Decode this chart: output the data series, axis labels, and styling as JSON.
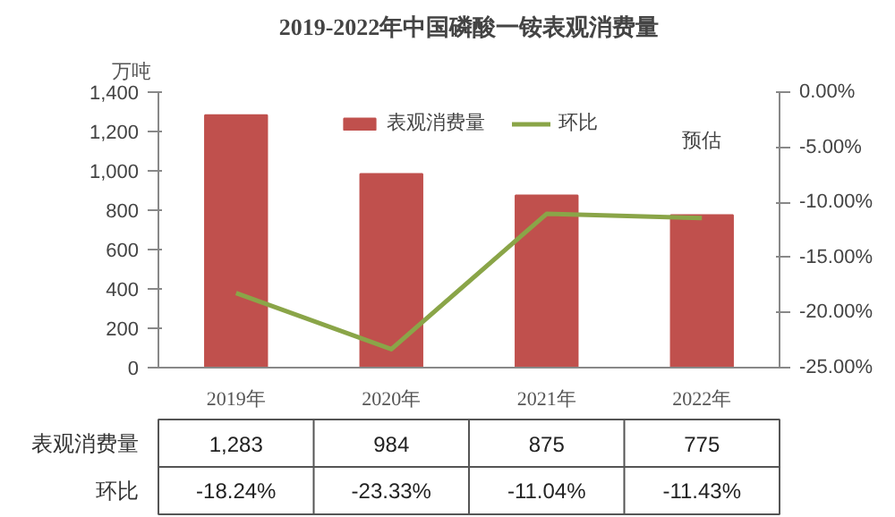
{
  "chart_data": {
    "type": "bar",
    "title": "2019-2022年中国磷酸一铵表观消费量",
    "ylabel": "万吨",
    "categories": [
      "2019年",
      "2020年",
      "2021年",
      "2022年"
    ],
    "series": [
      {
        "name": "表观消费量",
        "color": "#c0504d",
        "values": [
          1283,
          984,
          875,
          775
        ],
        "value_labels": [
          "1,283",
          "984",
          "875",
          "775"
        ]
      },
      {
        "name": "环比",
        "type": "line",
        "axis": "y2",
        "color": "#8aa548",
        "values": [
          -18.24,
          -23.33,
          -11.04,
          -11.43
        ],
        "value_labels": [
          "-18.24%",
          "-23.33%",
          "-11.04%",
          "-11.43%"
        ]
      }
    ],
    "ylim": [
      0,
      1400
    ],
    "yticks": [
      0,
      200,
      400,
      600,
      {
        "value": 800,
        "label": "800"
      },
      {
        "value": 1000,
        "label": "1,000"
      },
      {
        "value": 1200,
        "label": "1,200"
      },
      {
        "value": 1400,
        "label": "1,400"
      }
    ],
    "y2lim": [
      -25,
      0
    ],
    "y2ticks": [
      {
        "value": -25,
        "label": "-25.00%"
      },
      {
        "value": -20,
        "label": "-20.00%"
      },
      {
        "value": -15,
        "label": "-15.00%"
      },
      {
        "value": -10,
        "label": "-10.00%"
      },
      {
        "value": -5,
        "label": "-5.00%"
      },
      {
        "value": 0,
        "label": "0.00%"
      }
    ],
    "annotations": [
      "预估"
    ],
    "legend": "top",
    "grid": false,
    "line_style": "solid",
    "marker": "none"
  }
}
